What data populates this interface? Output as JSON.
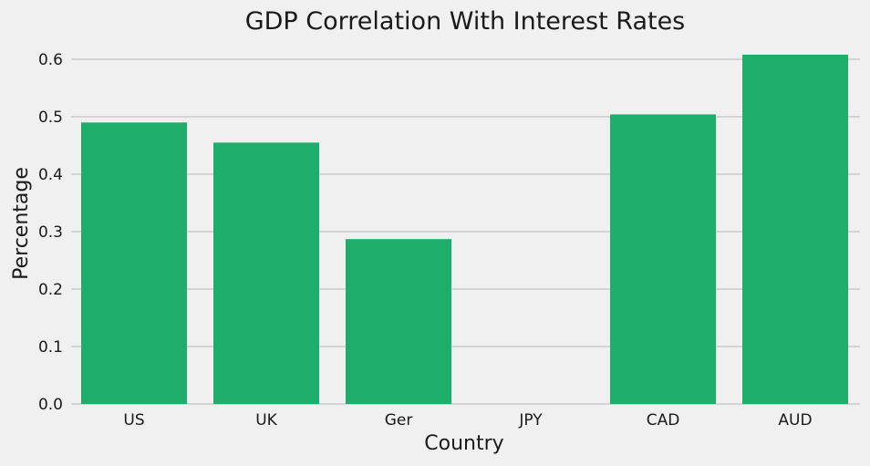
{
  "chart_data": {
    "type": "bar",
    "title": "GDP Correlation With Interest Rates",
    "xlabel": "Country",
    "ylabel": "Percentage",
    "categories": [
      "US",
      "UK",
      "Ger",
      "JPY",
      "CAD",
      "AUD"
    ],
    "values": [
      0.49,
      0.455,
      0.287,
      0.0,
      0.504,
      0.608
    ],
    "ylim": [
      0,
      0.63
    ],
    "yticks": [
      "0.0",
      "0.1",
      "0.2",
      "0.3",
      "0.4",
      "0.5",
      "0.6"
    ],
    "grid": "horizontal",
    "bar_color": "#1fad6c",
    "background_color": "#f0f0f0",
    "grid_color": "#cbcbcb"
  }
}
